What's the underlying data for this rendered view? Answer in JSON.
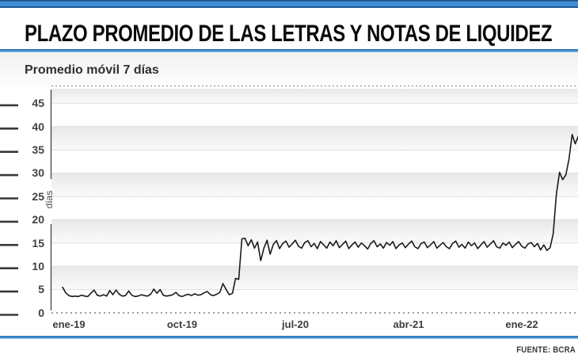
{
  "header": {
    "title": "PLAZO PROMEDIO DE LAS LETRAS Y NOTAS DE LIQUIDEZ",
    "subtitle": "Promedio móvil 7 días"
  },
  "footer": {
    "source": "FUENTE: BCRA"
  },
  "accent_color": "#3e8ed6",
  "chart_data": {
    "type": "line",
    "title": "PLAZO PROMEDIO DE LAS LETRAS Y NOTAS DE LIQUIDEZ",
    "subtitle": "Promedio móvil 7 días",
    "ylabel": "días",
    "ylim": [
      0,
      45
    ],
    "y_ticks": [
      0,
      5,
      10,
      15,
      20,
      25,
      30,
      35,
      40,
      45
    ],
    "x_tick_labels": [
      "ene-19",
      "oct-19",
      "jul-20",
      "abr-21",
      "ene-22"
    ],
    "x_tick_months": [
      0,
      9,
      18,
      27,
      36
    ],
    "grid": "horizontal-bands",
    "legend": "none",
    "line_color": "#1b1b1b",
    "source": "FUENTE: BCRA",
    "series": [
      {
        "name": "Plazo promedio de letras y notas de liquidez (días, promedio móvil 7 días)",
        "x_unit": "months since ene-19",
        "x_start_month": -0.5,
        "x_step_month": 0.25,
        "values": [
          5.5,
          4.3,
          3.7,
          3.5,
          3.6,
          3.5,
          3.8,
          3.6,
          3.5,
          4.2,
          4.9,
          3.8,
          3.6,
          3.9,
          3.6,
          4.8,
          3.9,
          4.9,
          4.0,
          3.6,
          3.7,
          4.7,
          3.8,
          3.5,
          3.6,
          3.9,
          3.7,
          3.6,
          4.0,
          5.1,
          4.2,
          5.0,
          3.8,
          3.6,
          3.7,
          3.9,
          4.4,
          3.7,
          3.5,
          3.8,
          4.0,
          3.7,
          4.1,
          3.8,
          3.9,
          4.3,
          4.6,
          3.9,
          3.7,
          4.0,
          4.4,
          6.3,
          5.0,
          3.9,
          4.2,
          7.4,
          7.2,
          15.9,
          16.0,
          14.4,
          15.7,
          13.9,
          15.2,
          11.2,
          13.9,
          15.6,
          12.6,
          14.7,
          15.5,
          13.8,
          14.9,
          15.4,
          14.1,
          14.8,
          15.6,
          14.3,
          13.9,
          15.1,
          15.5,
          14.2,
          14.9,
          13.8,
          15.3,
          14.6,
          13.9,
          15.2,
          14.4,
          15.5,
          14.0,
          14.7,
          15.4,
          13.8,
          14.6,
          15.2,
          14.1,
          15.0,
          14.4,
          13.7,
          14.9,
          15.5,
          14.2,
          14.8,
          13.9,
          15.1,
          14.5,
          15.3,
          13.8,
          14.6,
          15.0,
          14.0,
          14.8,
          15.4,
          14.2,
          13.8,
          14.9,
          15.2,
          14.0,
          14.6,
          15.3,
          13.9,
          14.5,
          15.1,
          14.2,
          13.8,
          14.9,
          15.4,
          14.1,
          14.7,
          13.9,
          15.2,
          14.4,
          15.0,
          13.8,
          14.6,
          15.3,
          14.1,
          14.8,
          15.5,
          14.2,
          13.9,
          15.0,
          14.5,
          15.2,
          14.0,
          14.7,
          15.3,
          14.3,
          13.9,
          14.8,
          15.1,
          14.2,
          14.9,
          13.5,
          14.6,
          13.4,
          14.0,
          17.0,
          25.5,
          30.2,
          28.6,
          29.6,
          33.0,
          38.3,
          36.3,
          38.0
        ]
      }
    ]
  }
}
